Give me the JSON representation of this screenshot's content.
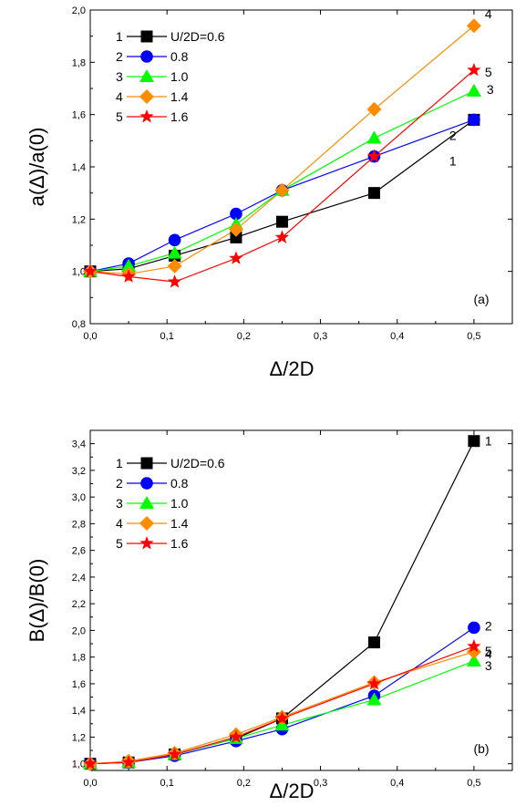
{
  "chart_data": [
    {
      "type": "line",
      "panel_label": "(a)",
      "xlabel": "Δ/2D",
      "ylabel": "a(Δ)/a(0)",
      "xlim": [
        0.0,
        0.55
      ],
      "ylim": [
        0.8,
        2.0
      ],
      "x_ticks": [
        0.0,
        0.1,
        0.2,
        0.3,
        0.4,
        0.5
      ],
      "x_tick_labels": [
        "0,0",
        "0,1",
        "0,2",
        "0,3",
        "0,4",
        "0,5"
      ],
      "y_ticks": [
        0.8,
        1.0,
        1.2,
        1.4,
        1.6,
        1.8,
        2.0
      ],
      "y_tick_labels": [
        "0,8",
        "1,0",
        "1,2",
        "1,4",
        "1,6",
        "1,8",
        "2,0"
      ],
      "grid": false,
      "legend_position": "top-left",
      "x": [
        0.0,
        0.05,
        0.11,
        0.19,
        0.25,
        0.37,
        0.5
      ],
      "series": [
        {
          "id": "1",
          "name": "U/2D=0.6",
          "color": "#000000",
          "marker": "square",
          "values": [
            1.0,
            1.01,
            1.06,
            1.13,
            1.19,
            1.3,
            1.58
          ]
        },
        {
          "id": "2",
          "name": "0.8",
          "color": "#0000ff",
          "marker": "circle",
          "values": [
            1.0,
            1.03,
            1.12,
            1.22,
            1.31,
            1.44,
            1.58
          ]
        },
        {
          "id": "3",
          "name": "1.0",
          "color": "#00ff00",
          "marker": "triangle",
          "values": [
            1.0,
            1.02,
            1.07,
            1.18,
            1.31,
            1.51,
            1.69
          ]
        },
        {
          "id": "4",
          "name": "1.4",
          "color": "#ff8c00",
          "marker": "diamond",
          "values": [
            1.0,
            0.99,
            1.02,
            1.16,
            1.31,
            1.62,
            1.94
          ]
        },
        {
          "id": "5",
          "name": "1.6",
          "color": "#ff0000",
          "marker": "star",
          "values": [
            1.0,
            0.98,
            0.96,
            1.05,
            1.13,
            1.44,
            1.77
          ]
        }
      ],
      "end_labels": [
        "1",
        "2",
        "3",
        "4",
        "5"
      ]
    },
    {
      "type": "line",
      "panel_label": "(b)",
      "xlabel": "Δ/2D",
      "ylabel": "B(Δ)/B(0)",
      "xlim": [
        0.0,
        0.55
      ],
      "ylim": [
        0.95,
        3.5
      ],
      "x_ticks": [
        0.0,
        0.1,
        0.2,
        0.3,
        0.4,
        0.5
      ],
      "x_tick_labels": [
        "0,0",
        "0,1",
        "0,2",
        "0,3",
        "0,4",
        "0,5"
      ],
      "y_ticks": [
        1.0,
        1.2,
        1.4,
        1.6,
        1.8,
        2.0,
        2.2,
        2.4,
        2.6,
        2.8,
        3.0,
        3.2,
        3.4
      ],
      "y_tick_labels": [
        "1,0",
        "1,2",
        "1,4",
        "1,6",
        "1,8",
        "2,0",
        "2,2",
        "2,4",
        "2,6",
        "2,8",
        "3,0",
        "3,2",
        "3,4"
      ],
      "grid": false,
      "legend_position": "top-left",
      "x": [
        0.0,
        0.05,
        0.11,
        0.19,
        0.25,
        0.37,
        0.5
      ],
      "series": [
        {
          "id": "1",
          "name": "U/2D=0.6",
          "color": "#000000",
          "marker": "square",
          "values": [
            1.0,
            1.01,
            1.07,
            1.19,
            1.34,
            1.91,
            3.42
          ]
        },
        {
          "id": "2",
          "name": "0.8",
          "color": "#0000ff",
          "marker": "circle",
          "values": [
            1.0,
            1.01,
            1.06,
            1.17,
            1.26,
            1.51,
            2.02
          ]
        },
        {
          "id": "3",
          "name": "1.0",
          "color": "#00ff00",
          "marker": "triangle",
          "values": [
            1.0,
            1.01,
            1.07,
            1.19,
            1.29,
            1.48,
            1.77
          ]
        },
        {
          "id": "4",
          "name": "1.4",
          "color": "#ff8c00",
          "marker": "diamond",
          "values": [
            1.0,
            1.02,
            1.08,
            1.22,
            1.35,
            1.61,
            1.84
          ]
        },
        {
          "id": "5",
          "name": "1.6",
          "color": "#ff0000",
          "marker": "star",
          "values": [
            1.0,
            1.01,
            1.07,
            1.2,
            1.34,
            1.6,
            1.88
          ]
        }
      ],
      "end_labels": [
        "1",
        "2",
        "5",
        "4",
        "3"
      ]
    }
  ]
}
